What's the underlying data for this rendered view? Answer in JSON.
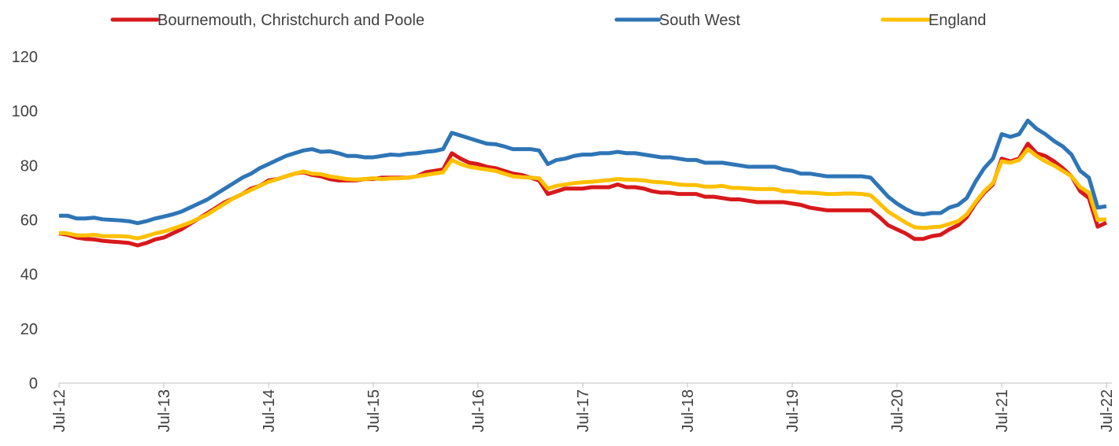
{
  "chart_data": {
    "type": "line",
    "categories": [
      "Jul-12",
      null,
      null,
      null,
      null,
      null,
      null,
      null,
      null,
      null,
      null,
      null,
      "Jul-13",
      null,
      null,
      null,
      null,
      null,
      null,
      null,
      null,
      null,
      null,
      null,
      "Jul-14",
      null,
      null,
      null,
      null,
      null,
      null,
      null,
      null,
      null,
      null,
      null,
      "Jul-15",
      null,
      null,
      null,
      null,
      null,
      null,
      null,
      null,
      null,
      null,
      null,
      "Jul-16",
      null,
      null,
      null,
      null,
      null,
      null,
      null,
      null,
      null,
      null,
      null,
      "Jul-17",
      null,
      null,
      null,
      null,
      null,
      null,
      null,
      null,
      null,
      null,
      null,
      "Jul-18",
      null,
      null,
      null,
      null,
      null,
      null,
      null,
      null,
      null,
      null,
      null,
      "Jul-19",
      null,
      null,
      null,
      null,
      null,
      null,
      null,
      null,
      null,
      null,
      null,
      "Jul-20",
      null,
      null,
      null,
      null,
      null,
      null,
      null,
      null,
      null,
      null,
      null,
      "Jul-21",
      null,
      null,
      null,
      null,
      null,
      null,
      null,
      null,
      null,
      null,
      null,
      "Jul-22"
    ],
    "series": [
      {
        "name": "Bournemouth, Christchurch and Poole",
        "color": "#d7191c",
        "values": [
          55,
          54.5,
          53.5,
          53,
          52.8,
          52.3,
          52,
          51.8,
          51.5,
          50.6,
          51.5,
          52.8,
          53.5,
          55,
          56.5,
          58.5,
          60.5,
          62.5,
          64.5,
          66.5,
          68,
          69.5,
          71.5,
          72.5,
          74.5,
          75,
          76,
          77,
          77.5,
          76.5,
          76,
          75,
          74.5,
          74.5,
          74.5,
          75,
          75,
          75.5,
          75.5,
          75.5,
          75.5,
          76,
          77.5,
          78,
          78.5,
          84.5,
          82.5,
          81,
          80.5,
          79.5,
          79,
          78,
          77,
          76.5,
          75.5,
          74.5,
          69.5,
          70.5,
          71.5,
          71.5,
          71.5,
          72,
          72,
          72,
          73,
          72,
          72,
          71.5,
          70.5,
          70,
          70,
          69.5,
          69.5,
          69.5,
          68.5,
          68.5,
          68,
          67.5,
          67.5,
          67,
          66.5,
          66.5,
          66.5,
          66.5,
          66,
          65.5,
          64.5,
          64,
          63.5,
          63.5,
          63.5,
          63.5,
          63.5,
          63.5,
          61,
          58,
          56.5,
          55,
          53,
          53,
          54,
          54.5,
          56.5,
          58,
          61,
          66,
          70,
          73,
          82.5,
          81.5,
          82.5,
          88,
          84.5,
          83.5,
          81.5,
          79,
          76,
          70.5,
          68,
          57.5,
          59
        ]
      },
      {
        "name": "South West",
        "color": "#2e75b6",
        "values": [
          61.5,
          61.5,
          60.5,
          60.5,
          60.8,
          60.2,
          60,
          59.8,
          59.5,
          58.8,
          59.5,
          60.5,
          61.2,
          62,
          63,
          64.5,
          66,
          67.5,
          69.5,
          71.5,
          73.5,
          75.5,
          77,
          79,
          80.5,
          82,
          83.5,
          84.5,
          85.5,
          86,
          85,
          85.2,
          84.5,
          83.5,
          83.5,
          83,
          83,
          83.5,
          84,
          83.8,
          84.3,
          84.5,
          85,
          85.3,
          86,
          92,
          91,
          90,
          89,
          88,
          87.8,
          87,
          86,
          86,
          86,
          85.5,
          80.5,
          82,
          82.5,
          83.5,
          84,
          84,
          84.5,
          84.5,
          85,
          84.5,
          84.5,
          84,
          83.5,
          83,
          83,
          82.5,
          82,
          82,
          81,
          81,
          81,
          80.5,
          80,
          79.5,
          79.5,
          79.5,
          79.5,
          78.5,
          78,
          77,
          77,
          76.5,
          76,
          76,
          76,
          76,
          76,
          75.5,
          72,
          68.5,
          66,
          64,
          62.5,
          62,
          62.5,
          62.5,
          64.5,
          65.5,
          68,
          74,
          79,
          82.5,
          91.5,
          90.5,
          91.5,
          96.5,
          93.5,
          91.5,
          89,
          87,
          84,
          78,
          75.5,
          64.5,
          65
        ]
      },
      {
        "name": "England",
        "color": "#ffc000",
        "values": [
          55.2,
          55,
          54.3,
          54.3,
          54.5,
          54,
          54,
          54,
          53.8,
          53.2,
          54,
          55,
          55.7,
          56.7,
          57.8,
          59,
          60.5,
          62,
          64,
          66,
          68,
          69.5,
          71,
          72.5,
          74,
          75,
          76,
          77,
          77.8,
          77,
          76.8,
          76,
          75.5,
          75,
          74.8,
          75,
          75.3,
          75,
          75.2,
          75.3,
          75.5,
          76,
          76.5,
          77,
          77.5,
          82,
          80.5,
          79.5,
          79,
          78.5,
          78,
          77,
          76,
          75.7,
          75.5,
          75.3,
          71.5,
          72.5,
          73,
          73.5,
          73.8,
          74,
          74.3,
          74.6,
          75,
          74.8,
          74.7,
          74.5,
          74,
          73.8,
          73.5,
          73,
          72.8,
          72.8,
          72.2,
          72.2,
          72.5,
          71.8,
          71.7,
          71.5,
          71.3,
          71.3,
          71.3,
          70.5,
          70.5,
          70,
          70,
          69.8,
          69.5,
          69.5,
          69.7,
          69.7,
          69.5,
          69,
          66,
          63,
          61,
          59,
          57.3,
          57,
          57.3,
          57.5,
          58.5,
          59.5,
          62,
          66.5,
          70.5,
          73.5,
          81.5,
          81,
          82,
          86,
          83.5,
          81.5,
          80,
          78,
          76,
          72,
          70,
          60,
          60.2
        ]
      }
    ],
    "ylim": [
      0,
      120
    ],
    "yticks": [
      0,
      20,
      40,
      60,
      80,
      100,
      120
    ],
    "grid": false,
    "legend": "top"
  }
}
